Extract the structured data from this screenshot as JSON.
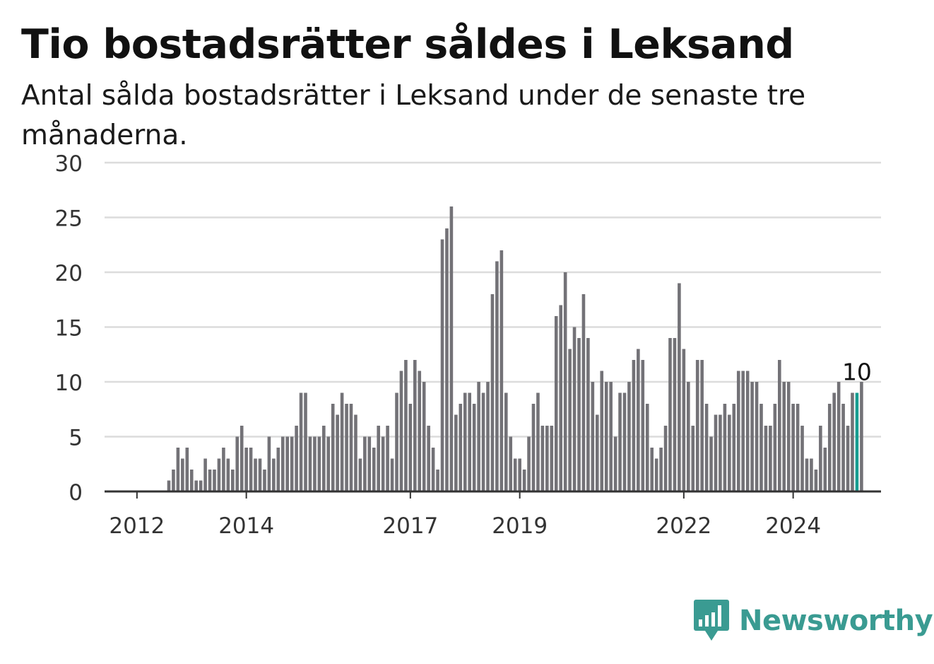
{
  "chart_data": {
    "type": "bar",
    "title": "Tio bostadsrätter såldes i Leksand",
    "subtitle": "Antal sålda bostadsrätter i Leksand under de senaste tre månaderna.",
    "ylim": [
      0,
      30
    ],
    "yticks": [
      0,
      5,
      10,
      15,
      20,
      25,
      30
    ],
    "xticks": [
      {
        "label": "2012",
        "index": 3
      },
      {
        "label": "2014",
        "index": 27
      },
      {
        "label": "2017",
        "index": 63
      },
      {
        "label": "2019",
        "index": 87
      },
      {
        "label": "2022",
        "index": 123
      },
      {
        "label": "2024",
        "index": 147
      }
    ],
    "values": [
      0,
      0,
      0,
      0,
      0,
      0,
      0,
      0,
      0,
      0,
      1,
      2,
      4,
      3,
      4,
      2,
      1,
      1,
      3,
      2,
      2,
      3,
      4,
      3,
      2,
      5,
      6,
      4,
      4,
      3,
      3,
      2,
      5,
      3,
      4,
      5,
      5,
      5,
      6,
      9,
      9,
      5,
      5,
      5,
      6,
      5,
      8,
      7,
      9,
      8,
      8,
      7,
      3,
      5,
      5,
      4,
      6,
      5,
      6,
      3,
      9,
      11,
      12,
      8,
      12,
      11,
      10,
      6,
      4,
      2,
      23,
      24,
      26,
      7,
      8,
      9,
      9,
      8,
      10,
      9,
      10,
      18,
      21,
      22,
      9,
      5,
      3,
      3,
      2,
      5,
      8,
      9,
      6,
      6,
      6,
      16,
      17,
      20,
      13,
      15,
      14,
      18,
      14,
      10,
      7,
      11,
      10,
      10,
      5,
      9,
      9,
      10,
      12,
      13,
      12,
      8,
      4,
      3,
      4,
      6,
      14,
      14,
      19,
      13,
      10,
      6,
      12,
      12,
      8,
      5,
      7,
      7,
      8,
      7,
      8,
      11,
      11,
      11,
      10,
      10,
      8,
      6,
      6,
      8,
      12,
      10,
      10,
      8,
      8,
      6,
      3,
      3,
      2,
      6,
      4,
      8,
      9,
      10,
      8,
      6,
      9,
      9,
      10
    ],
    "highlight_index": 161,
    "highlight_label": "10",
    "colors": {
      "bar": "#737277",
      "highlight": "#169c90",
      "grid": "#dcdcdc",
      "axis": "#333333"
    }
  },
  "brand": {
    "name": "Newsworthy",
    "color": "#3a9b92"
  }
}
